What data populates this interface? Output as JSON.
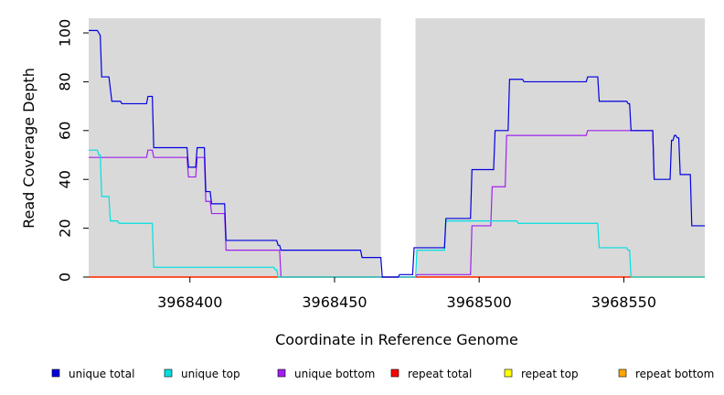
{
  "chart_data": {
    "type": "line",
    "xlabel": "Coordinate in Reference Genome",
    "ylabel": "Read Coverage Depth",
    "xlim": [
      3968365,
      3968578
    ],
    "ylim": [
      0,
      106
    ],
    "x_ticks": [
      3968400,
      3968450,
      3968500,
      3968550
    ],
    "x_tick_labels": [
      "3968400",
      "3968450",
      "3968500",
      "3968550"
    ],
    "y_ticks": [
      0,
      20,
      40,
      60,
      80,
      100
    ],
    "y_tick_labels": [
      "0",
      "20",
      "40",
      "60",
      "80",
      "100"
    ],
    "background_color": "#d9d9d9",
    "gap_regions": [
      [
        3968466,
        3968478
      ]
    ],
    "legend_position": "bottom",
    "series": [
      {
        "name": "unique total",
        "color": "#0000e0",
        "step_points": [
          [
            3968365,
            101
          ],
          [
            3968368,
            101
          ],
          [
            3968369,
            99
          ],
          [
            3968369.5,
            82
          ],
          [
            3968372,
            82
          ],
          [
            3968373,
            72
          ],
          [
            3968376,
            72
          ],
          [
            3968376.5,
            71
          ],
          [
            3968385,
            71
          ],
          [
            3968385.5,
            74
          ],
          [
            3968387,
            74
          ],
          [
            3968387.5,
            53
          ],
          [
            3968399,
            53
          ],
          [
            3968399.5,
            45
          ],
          [
            3968402,
            45
          ],
          [
            3968402.5,
            53
          ],
          [
            3968405,
            53
          ],
          [
            3968405.5,
            35
          ],
          [
            3968407,
            35
          ],
          [
            3968407.5,
            30
          ],
          [
            3968412,
            30
          ],
          [
            3968412.5,
            15
          ],
          [
            3968430,
            15
          ],
          [
            3968430.5,
            13
          ],
          [
            3968431,
            13
          ],
          [
            3968431.5,
            11
          ],
          [
            3968459,
            11
          ],
          [
            3968459.5,
            8
          ],
          [
            3968466,
            8
          ],
          [
            3968466.5,
            0
          ],
          [
            3968472,
            0
          ],
          [
            3968472.5,
            1
          ],
          [
            3968477,
            1
          ],
          [
            3968477.5,
            12
          ],
          [
            3968488,
            12
          ],
          [
            3968488.5,
            24
          ],
          [
            3968497,
            24
          ],
          [
            3968497.5,
            44
          ],
          [
            3968505,
            44
          ],
          [
            3968505.5,
            60
          ],
          [
            3968510,
            60
          ],
          [
            3968510.5,
            81
          ],
          [
            3968515,
            81
          ],
          [
            3968515.5,
            80
          ],
          [
            3968537,
            80
          ],
          [
            3968537.5,
            82
          ],
          [
            3968541,
            82
          ],
          [
            3968541.5,
            72
          ],
          [
            3968551,
            72
          ],
          [
            3968551.5,
            71
          ],
          [
            3968552,
            71
          ],
          [
            3968552.5,
            60
          ],
          [
            3968560,
            60
          ],
          [
            3968560.5,
            40
          ],
          [
            3968566,
            40
          ],
          [
            3968566.5,
            56
          ],
          [
            3968567,
            56
          ],
          [
            3968567.5,
            58
          ],
          [
            3968568,
            58
          ],
          [
            3968568.5,
            57
          ],
          [
            3968569,
            57
          ],
          [
            3968569.5,
            42
          ],
          [
            3968573,
            42
          ],
          [
            3968573.5,
            21
          ],
          [
            3968578,
            21
          ]
        ]
      },
      {
        "name": "unique top",
        "color": "#00e0e0",
        "step_points": [
          [
            3968365,
            52
          ],
          [
            3968368,
            52
          ],
          [
            3968368.5,
            50
          ],
          [
            3968369,
            50
          ],
          [
            3968369.5,
            33
          ],
          [
            3968372,
            33
          ],
          [
            3968372.5,
            23
          ],
          [
            3968375,
            23
          ],
          [
            3968375.5,
            22
          ],
          [
            3968387,
            22
          ],
          [
            3968387.5,
            4
          ],
          [
            3968429,
            4
          ],
          [
            3968429.5,
            3
          ],
          [
            3968430,
            3
          ],
          [
            3968430.5,
            0
          ],
          [
            3968466,
            0
          ],
          [
            3968478,
            0
          ],
          [
            3968478.5,
            11
          ],
          [
            3968488,
            11
          ],
          [
            3968488.5,
            23
          ],
          [
            3968513,
            23
          ],
          [
            3968513.5,
            22
          ],
          [
            3968541,
            22
          ],
          [
            3968541.5,
            12
          ],
          [
            3968551,
            12
          ],
          [
            3968551.5,
            11
          ],
          [
            3968552,
            11
          ],
          [
            3968552.5,
            0
          ],
          [
            3968578,
            0
          ]
        ]
      },
      {
        "name": "unique bottom",
        "color": "#a020f0",
        "step_points": [
          [
            3968365,
            49
          ],
          [
            3968385,
            49
          ],
          [
            3968385.5,
            52
          ],
          [
            3968387,
            52
          ],
          [
            3968387.5,
            49
          ],
          [
            3968399,
            49
          ],
          [
            3968399.5,
            41
          ],
          [
            3968402,
            41
          ],
          [
            3968402.5,
            49
          ],
          [
            3968405,
            49
          ],
          [
            3968405.5,
            31
          ],
          [
            3968407,
            31
          ],
          [
            3968407.5,
            26
          ],
          [
            3968412,
            26
          ],
          [
            3968412.5,
            11
          ],
          [
            3968431,
            11
          ],
          [
            3968431.5,
            0
          ],
          [
            3968466,
            0
          ],
          [
            3968478,
            0
          ],
          [
            3968478.5,
            1
          ],
          [
            3968497,
            1
          ],
          [
            3968497.5,
            21
          ],
          [
            3968504,
            21
          ],
          [
            3968504.5,
            37
          ],
          [
            3968509,
            37
          ],
          [
            3968509.5,
            58
          ],
          [
            3968537,
            58
          ],
          [
            3968537.5,
            60
          ],
          [
            3968552,
            60
          ],
          [
            3968552.5,
            60
          ],
          [
            3968560,
            60
          ],
          [
            3968560.5,
            40
          ]
        ]
      },
      {
        "name": "repeat total",
        "color": "#ff0000",
        "step_points": [
          [
            3968365,
            0
          ],
          [
            3968578,
            0
          ]
        ]
      },
      {
        "name": "repeat top",
        "color": "#ffff00",
        "step_points": [
          [
            3968365,
            0
          ],
          [
            3968578,
            0
          ]
        ]
      },
      {
        "name": "repeat bottom",
        "color": "#ffa500",
        "step_points": [
          [
            3968365,
            0
          ],
          [
            3968578,
            0
          ]
        ]
      }
    ]
  }
}
